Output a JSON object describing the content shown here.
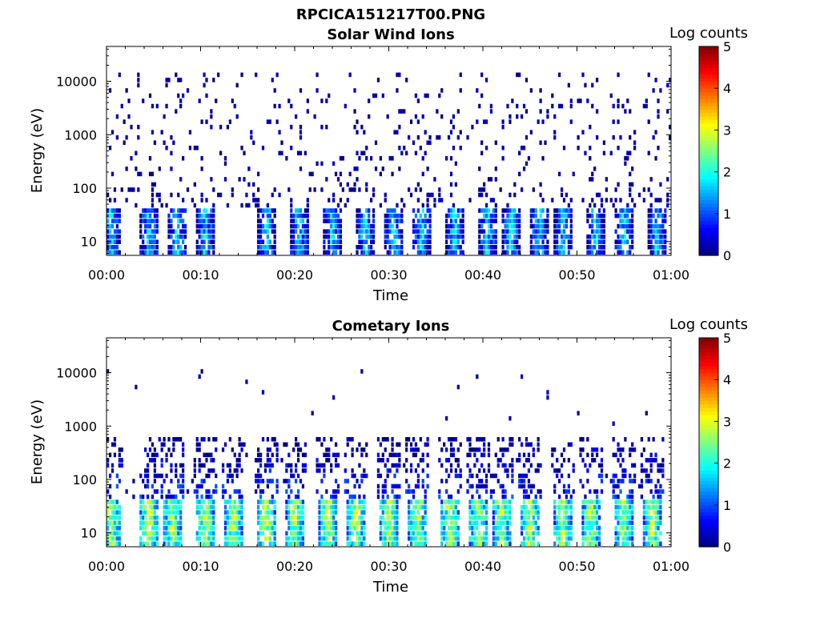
{
  "figure_title": "RPCICA151217T00.PNG",
  "colorbar": {
    "label": "Log counts",
    "ticks": [
      "0",
      "1",
      "2",
      "3",
      "4",
      "5"
    ],
    "range": [
      0,
      5
    ],
    "colormap": [
      "#00007f",
      "#0000ff",
      "#007fff",
      "#00ffff",
      "#7fff7f",
      "#ffff00",
      "#ff7f00",
      "#ff0000",
      "#7f0000"
    ]
  },
  "chart_data": [
    {
      "type": "heatmap",
      "title": "Solar Wind Ions",
      "xlabel": "Time",
      "ylabel": "Energy (eV)",
      "xticks": [
        "00:00",
        "00:10",
        "00:20",
        "00:30",
        "00:40",
        "00:50",
        "01:00"
      ],
      "yticks": [
        "10",
        "100",
        "1000",
        "10000"
      ],
      "xlim_minutes": [
        0,
        60
      ],
      "ylim_eV": [
        5.5,
        45000
      ],
      "y_scale": "log",
      "z_label": "Log counts",
      "z_range": [
        0,
        5
      ],
      "low_energy_bursts_min": [
        0.5,
        4.5,
        7.5,
        10.5,
        17,
        20.5,
        24,
        27.5,
        30.5,
        33.5,
        37,
        40.5,
        43,
        46,
        48.5,
        52,
        55,
        58.5
      ],
      "burst_peak_log_counts": 2.3,
      "background": "sparse single counts (log ~0-0.3) between ~40 eV and ~15000 eV"
    },
    {
      "type": "heatmap",
      "title": "Cometary Ions",
      "xlabel": "Time",
      "ylabel": "Energy (eV)",
      "xticks": [
        "00:00",
        "00:10",
        "00:20",
        "00:30",
        "00:40",
        "00:50",
        "01:00"
      ],
      "yticks": [
        "10",
        "100",
        "1000",
        "10000"
      ],
      "xlim_minutes": [
        0,
        60
      ],
      "ylim_eV": [
        5.5,
        45000
      ],
      "y_scale": "log",
      "z_label": "Log counts",
      "z_range": [
        0,
        5
      ],
      "low_energy_bursts_min": [
        0.5,
        4.5,
        7,
        10.5,
        13.5,
        17,
        20,
        23.5,
        26.5,
        30,
        33,
        36.5,
        39.5,
        42,
        45,
        48.5,
        51.5,
        55,
        58
      ],
      "burst_peak_log_counts": 3.4,
      "background": "sparse counts, mostly below ~600 eV with scattered points up to ~10000 eV"
    }
  ]
}
